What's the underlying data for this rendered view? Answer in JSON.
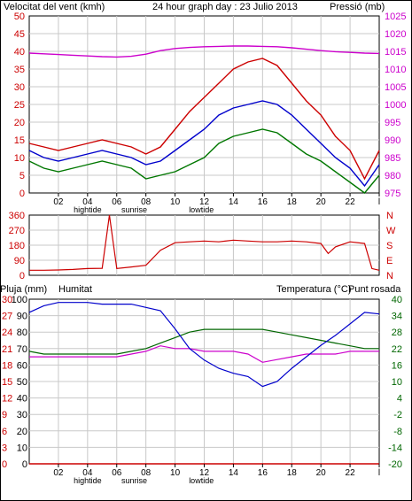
{
  "header": {
    "left_label": "Velocitat del vent (kmh)",
    "title": "24 hour graph day : 23 Julio 2013",
    "right_label": "Pressió (mb)"
  },
  "colors": {
    "wind_speed": "#cc0000",
    "wind_avg": "#0000cc",
    "wind_low": "#007700",
    "pressure": "#cc00cc",
    "direction": "#cc0000",
    "humidity": "#0000cc",
    "temperature": "#006600",
    "dewpoint": "#cc00cc",
    "rain": "#cc0000",
    "grid": "#c8c8c8"
  },
  "time_axis": {
    "labels": [
      "02",
      "04",
      "06",
      "08",
      "10",
      "12",
      "14",
      "16",
      "18",
      "20",
      "22",
      "l"
    ],
    "tide_labels": [
      "hightide",
      "sunrise",
      "lowtide"
    ]
  },
  "chart_data": [
    {
      "type": "line",
      "name": "wind-pressure",
      "x": [
        0,
        1,
        2,
        3,
        4,
        5,
        6,
        7,
        8,
        9,
        10,
        11,
        12,
        13,
        14,
        15,
        16,
        17,
        18,
        19,
        20,
        21,
        22,
        23,
        24
      ],
      "series": [
        {
          "name": "Velocitat del vent",
          "axis": "left",
          "values": [
            14,
            13,
            12,
            13,
            14,
            15,
            14,
            13,
            11,
            13,
            18,
            23,
            27,
            31,
            35,
            37,
            38,
            36,
            31,
            26,
            22,
            16,
            12,
            4,
            12
          ]
        },
        {
          "name": "",
          "axis": "left",
          "values": [
            12,
            10,
            9,
            10,
            11,
            12,
            11,
            10,
            8,
            9,
            12,
            15,
            18,
            22,
            24,
            25,
            26,
            25,
            22,
            18,
            14,
            10,
            7,
            2,
            8
          ]
        },
        {
          "name": "",
          "axis": "left",
          "values": [
            9,
            7,
            6,
            7,
            8,
            9,
            8,
            7,
            4,
            5,
            6,
            8,
            10,
            14,
            16,
            17,
            18,
            17,
            14,
            11,
            9,
            6,
            3,
            0,
            5
          ]
        },
        {
          "name": "Pressió",
          "axis": "right",
          "values": [
            1014.5,
            1014.3,
            1014.1,
            1013.9,
            1013.7,
            1013.5,
            1013.4,
            1013.6,
            1014.2,
            1015.2,
            1015.8,
            1016.1,
            1016.3,
            1016.4,
            1016.5,
            1016.5,
            1016.4,
            1016.3,
            1016.0,
            1015.6,
            1015.2,
            1014.9,
            1014.7,
            1014.5,
            1014.4
          ]
        }
      ],
      "y_left": {
        "range": [
          0,
          50
        ],
        "ticks": [
          0,
          5,
          10,
          15,
          20,
          25,
          30,
          35,
          40,
          45,
          50
        ]
      },
      "y_right": {
        "range": [
          975,
          1025
        ],
        "ticks": [
          975,
          980,
          985,
          990,
          995,
          1000,
          1005,
          1010,
          1015,
          1020,
          1025
        ]
      }
    },
    {
      "type": "line",
      "name": "wind-direction",
      "x": [
        0,
        1,
        2,
        3,
        4,
        5,
        5.5,
        6,
        7,
        8,
        9,
        10,
        11,
        12,
        13,
        14,
        15,
        16,
        17,
        18,
        19,
        20,
        20.5,
        21,
        22,
        23,
        23.5,
        24
      ],
      "series": [
        {
          "name": "Direcció",
          "axis": "left",
          "values": [
            30,
            30,
            32,
            35,
            40,
            42,
            360,
            40,
            50,
            60,
            150,
            195,
            200,
            205,
            200,
            210,
            205,
            200,
            200,
            205,
            200,
            190,
            130,
            170,
            200,
            190,
            40,
            30
          ]
        }
      ],
      "y_left": {
        "range": [
          0,
          360
        ],
        "ticks": [
          0,
          90,
          180,
          270,
          360
        ]
      },
      "y_right_labels": [
        "N",
        "W",
        "S",
        "E",
        "N"
      ]
    },
    {
      "type": "line",
      "name": "humidity-temperature",
      "legend": {
        "rain": "Pluja (mm)",
        "humidity": "Humitat",
        "temperature": "Temperatura (°C)",
        "dewpoint": "Punt rosada"
      },
      "x": [
        0,
        1,
        2,
        3,
        4,
        5,
        6,
        7,
        8,
        9,
        10,
        11,
        12,
        13,
        14,
        15,
        16,
        17,
        18,
        19,
        20,
        21,
        22,
        23,
        24
      ],
      "series": [
        {
          "name": "Humitat",
          "axis": "humidity",
          "values": [
            92,
            96,
            98,
            98,
            98,
            97,
            97,
            97,
            95,
            93,
            82,
            70,
            63,
            58,
            55,
            53,
            47,
            50,
            58,
            65,
            72,
            78,
            85,
            92,
            91
          ]
        },
        {
          "name": "Temperatura (°C)",
          "axis": "temperature",
          "values": [
            21,
            20,
            20,
            20,
            20,
            20,
            20,
            21,
            22,
            24,
            26,
            28,
            29,
            29,
            29,
            29,
            29,
            28,
            27,
            26,
            25,
            24,
            23,
            22,
            22
          ]
        },
        {
          "name": "Punt rosada",
          "axis": "temperature",
          "values": [
            19,
            19,
            19,
            19,
            19,
            19,
            19,
            20,
            21,
            23,
            22,
            22,
            21,
            21,
            21,
            20,
            17,
            18,
            19,
            20,
            20,
            20,
            21,
            21,
            21
          ]
        },
        {
          "name": "Pluja (mm)",
          "axis": "rain",
          "values": [
            0,
            0,
            0,
            0,
            0,
            0,
            0,
            0,
            0,
            0,
            0,
            0,
            0,
            0,
            0,
            0,
            0,
            0,
            0,
            0,
            0,
            0,
            0,
            0,
            0
          ]
        }
      ],
      "axis_rain": {
        "range": [
          0,
          30
        ],
        "ticks": [
          0,
          3,
          6,
          9,
          12,
          15,
          18,
          21,
          24,
          27,
          30
        ]
      },
      "axis_humidity": {
        "range": [
          0,
          100
        ],
        "ticks": [
          0,
          10,
          20,
          30,
          40,
          50,
          60,
          70,
          80,
          90,
          100
        ]
      },
      "axis_temperature": {
        "range": [
          -20,
          40
        ],
        "ticks": [
          -20,
          -14,
          -8,
          -2,
          4,
          10,
          16,
          22,
          28,
          34,
          40
        ]
      }
    }
  ]
}
